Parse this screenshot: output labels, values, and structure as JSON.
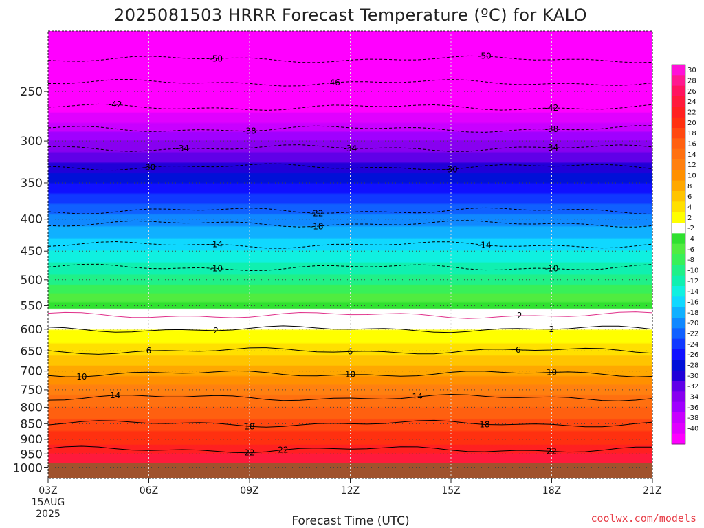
{
  "chart_data": {
    "type": "heatmap",
    "title": "2025081503 HRRR Forecast Temperature (ºC) for KALO",
    "xlabel": "Forecast Time (UTC)",
    "ylabel": "",
    "x_ticks": [
      "03Z",
      "06Z",
      "09Z",
      "12Z",
      "15Z",
      "18Z",
      "21Z"
    ],
    "x_tick_hours": [
      3,
      6,
      9,
      12,
      15,
      18,
      21
    ],
    "x_date_line1": "15AUG",
    "x_date_line2": "2025",
    "xlim_hours": [
      3,
      21
    ],
    "y_ticks": [
      250,
      300,
      350,
      400,
      450,
      500,
      550,
      600,
      650,
      700,
      750,
      800,
      850,
      900,
      950,
      1000
    ],
    "y_unit": "hPa",
    "ylim_hPa": [
      200,
      1040
    ],
    "y_scale": "log",
    "grid": true,
    "legend_placement": "right",
    "surface_level_hPa": 983,
    "temperature_profile": {
      "pressure_hPa": [
        200,
        250,
        300,
        350,
        400,
        450,
        500,
        550,
        575,
        600,
        650,
        700,
        750,
        800,
        850,
        900,
        950,
        1000
      ],
      "temp_C": [
        -54,
        -44,
        -34,
        -26,
        -19,
        -14,
        -9,
        -3,
        0,
        2,
        5,
        9,
        13,
        16,
        19,
        21,
        24,
        27
      ]
    },
    "colorbar": {
      "labels": [
        30,
        28,
        26,
        24,
        22,
        20,
        18,
        16,
        14,
        12,
        10,
        8,
        6,
        4,
        2,
        -2,
        -4,
        -6,
        -8,
        -10,
        -12,
        -14,
        -16,
        -18,
        -20,
        -22,
        -24,
        -26,
        -28,
        -30,
        -32,
        -34,
        -36,
        -38,
        -40
      ],
      "colors": [
        "#ff10d8",
        "#ff1890",
        "#ff1460",
        "#ff1a3c",
        "#ff2020",
        "#ff3010",
        "#ff4810",
        "#ff6010",
        "#ff7010",
        "#ff8010",
        "#ff9000",
        "#ffa800",
        "#ffc400",
        "#ffe000",
        "#ffff00",
        "#ffffff",
        "#30e030",
        "#50ec40",
        "#38f058",
        "#20f088",
        "#10f0b0",
        "#10f0e0",
        "#10d8ff",
        "#10b0ff",
        "#1088ff",
        "#1060ff",
        "#1038ff",
        "#1010ff",
        "#0010d8",
        "#2000d8",
        "#6000e8",
        "#8800f0",
        "#a000ff",
        "#c800ff",
        "#e000ff",
        "#ff00ff"
      ]
    },
    "contours": [
      {
        "label": "-50",
        "pressure_hPa": 222,
        "label_hours": [
          8,
          16
        ]
      },
      {
        "label": "-46",
        "pressure_hPa": 242,
        "label_hours": [
          11.5
        ]
      },
      {
        "label": "-42",
        "pressure_hPa": 265,
        "label_hours": [
          5,
          18
        ]
      },
      {
        "label": "-38",
        "pressure_hPa": 287,
        "label_hours": [
          9,
          18
        ]
      },
      {
        "label": "-34",
        "pressure_hPa": 308,
        "label_hours": [
          7,
          12,
          18
        ]
      },
      {
        "label": "-30",
        "pressure_hPa": 330,
        "label_hours": [
          6,
          15
        ]
      },
      {
        "label": "-22",
        "pressure_hPa": 388,
        "label_hours": [
          11
        ]
      },
      {
        "label": "-18",
        "pressure_hPa": 407,
        "label_hours": [
          11
        ]
      },
      {
        "label": "-14",
        "pressure_hPa": 440,
        "label_hours": [
          8,
          16
        ]
      },
      {
        "label": "-10",
        "pressure_hPa": 478,
        "label_hours": [
          8,
          18
        ]
      },
      {
        "label": "-2",
        "pressure_hPa": 570,
        "label_hours": [
          17
        ]
      },
      {
        "label": "2",
        "pressure_hPa": 600,
        "label_hours": [
          8,
          18
        ]
      },
      {
        "label": "6",
        "pressure_hPa": 650,
        "label_hours": [
          6,
          12,
          17
        ]
      },
      {
        "label": "10",
        "pressure_hPa": 707,
        "label_hours": [
          4,
          12,
          18
        ]
      },
      {
        "label": "14",
        "pressure_hPa": 772,
        "label_hours": [
          5,
          14
        ]
      },
      {
        "label": "18",
        "pressure_hPa": 850,
        "label_hours": [
          9,
          16
        ]
      },
      {
        "label": "22",
        "pressure_hPa": 935,
        "label_hours": [
          9,
          10,
          18
        ]
      }
    ]
  },
  "credit": "coolwx.com/models"
}
